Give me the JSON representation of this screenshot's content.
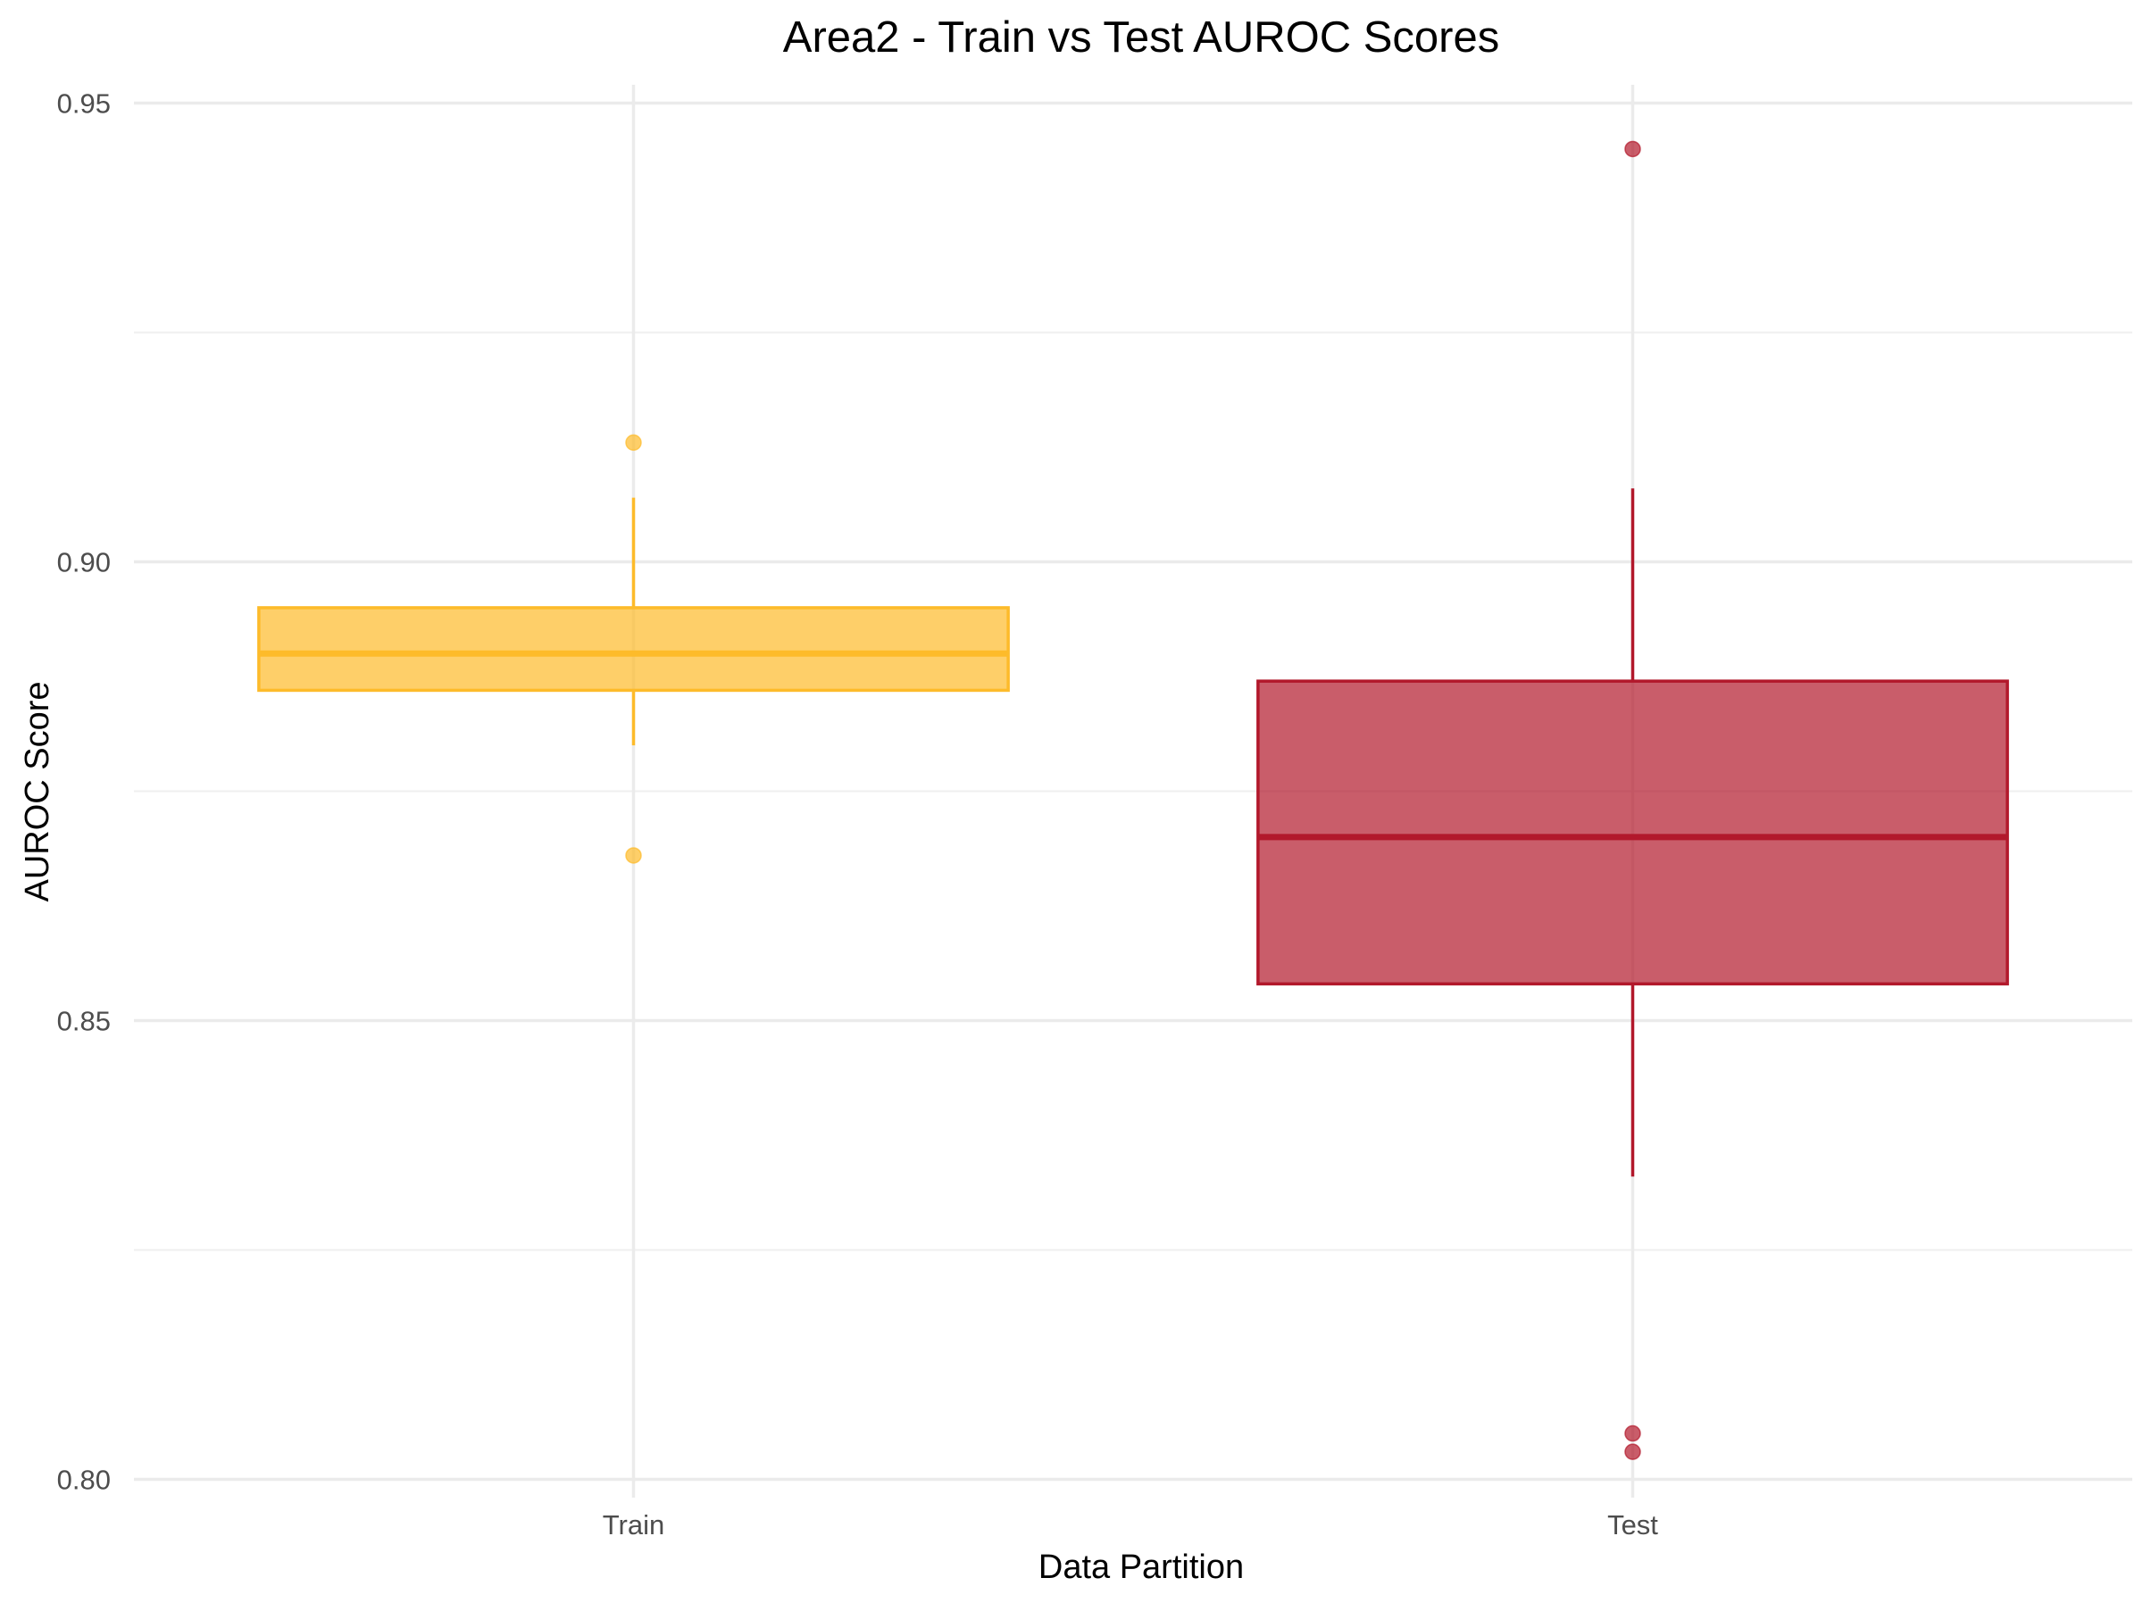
{
  "chart_data": {
    "type": "box",
    "title": "Area2 - Train vs Test AUROC Scores",
    "xlabel": "Data Partition",
    "ylabel": "AUROC Score",
    "ylim": [
      0.798,
      0.952
    ],
    "yticks": [
      0.8,
      0.85,
      0.9,
      0.95
    ],
    "ytick_labels": [
      "0.80",
      "0.85",
      "0.90",
      "0.95"
    ],
    "grid": true,
    "legend": "none",
    "categories": [
      "Train",
      "Test"
    ],
    "series": [
      {
        "category": "Train",
        "color": "#FDBB2A",
        "q1": 0.886,
        "median": 0.89,
        "q3": 0.895,
        "whisker_low": 0.88,
        "whisker_high": 0.907,
        "outliers": [
          0.913,
          0.868
        ]
      },
      {
        "category": "Test",
        "color": "#B2182B",
        "q1": 0.854,
        "median": 0.87,
        "q3": 0.887,
        "whisker_low": 0.833,
        "whisker_high": 0.908,
        "outliers": [
          0.945,
          0.805,
          0.803
        ]
      }
    ]
  }
}
